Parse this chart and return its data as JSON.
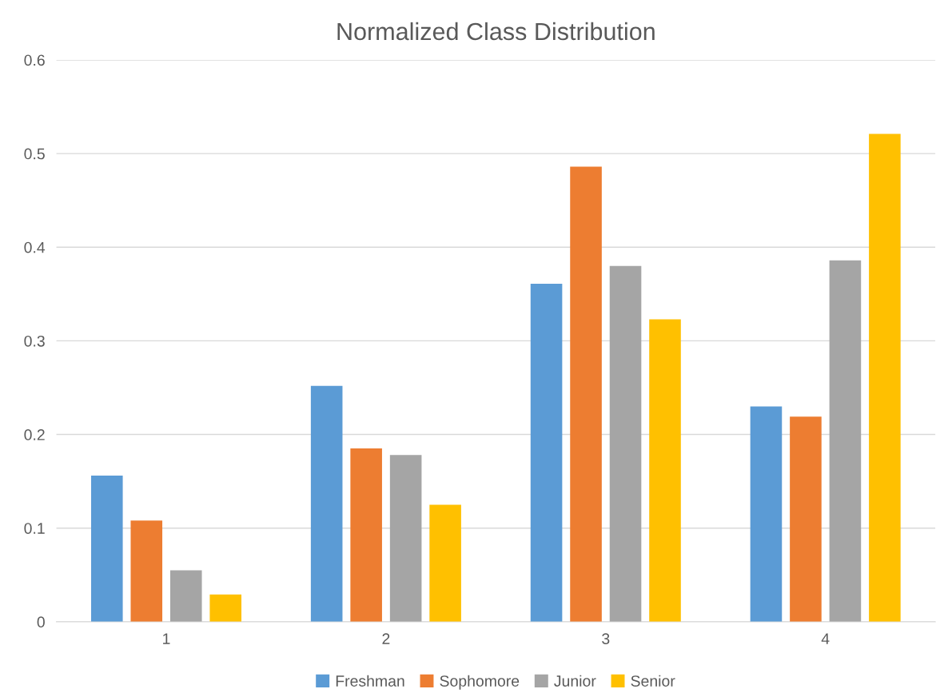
{
  "chart_data": {
    "type": "bar",
    "title": "Normalized Class Distribution",
    "categories": [
      "1",
      "2",
      "3",
      "4"
    ],
    "series": [
      {
        "name": "Freshman",
        "color": "#5b9bd5",
        "values": [
          0.156,
          0.252,
          0.361,
          0.23
        ]
      },
      {
        "name": "Sophomore",
        "color": "#ed7d31",
        "values": [
          0.108,
          0.185,
          0.486,
          0.219
        ]
      },
      {
        "name": "Junior",
        "color": "#a5a5a5",
        "values": [
          0.055,
          0.178,
          0.38,
          0.386
        ]
      },
      {
        "name": "Senior",
        "color": "#ffc000",
        "values": [
          0.029,
          0.125,
          0.323,
          0.521
        ]
      }
    ],
    "ylim": [
      0,
      0.6
    ],
    "yticks": [
      0,
      0.1,
      0.2,
      0.3,
      0.4,
      0.5,
      0.6
    ],
    "grid": "y",
    "legend": "bottom"
  }
}
